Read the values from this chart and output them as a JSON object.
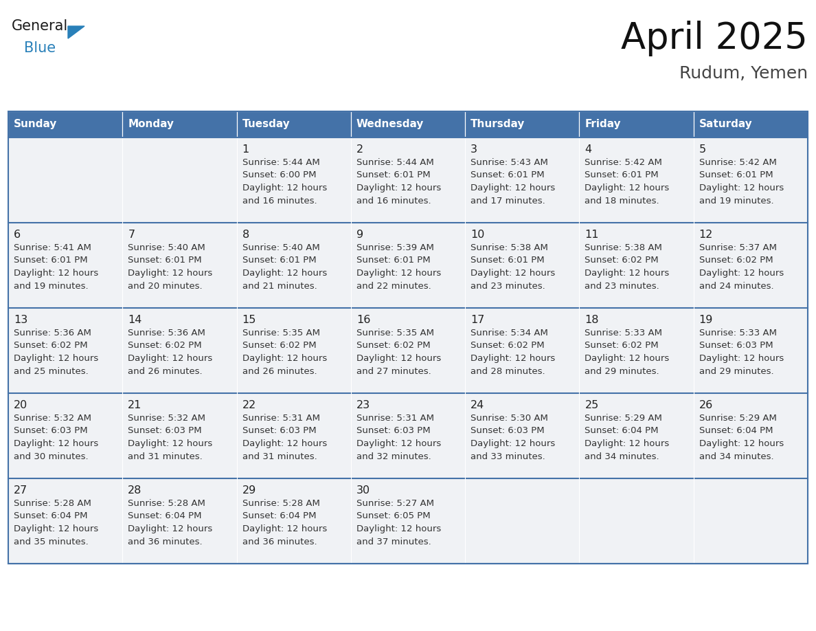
{
  "title": "April 2025",
  "subtitle": "Rudum, Yemen",
  "header_bg": "#4472a8",
  "header_text_color": "#ffffff",
  "day_names": [
    "Sunday",
    "Monday",
    "Tuesday",
    "Wednesday",
    "Thursday",
    "Friday",
    "Saturday"
  ],
  "cell_bg": "#f0f2f5",
  "cell_border_color": "#4472a8",
  "text_color": "#333333",
  "day_num_color": "#222222",
  "logo_general_color": "#1a1a1a",
  "logo_blue_color": "#2980b9",
  "calendar": [
    [
      null,
      null,
      {
        "day": 1,
        "sunrise": "5:44 AM",
        "sunset": "6:00 PM",
        "daylight": "and 16 minutes."
      },
      {
        "day": 2,
        "sunrise": "5:44 AM",
        "sunset": "6:01 PM",
        "daylight": "and 16 minutes."
      },
      {
        "day": 3,
        "sunrise": "5:43 AM",
        "sunset": "6:01 PM",
        "daylight": "and 17 minutes."
      },
      {
        "day": 4,
        "sunrise": "5:42 AM",
        "sunset": "6:01 PM",
        "daylight": "and 18 minutes."
      },
      {
        "day": 5,
        "sunrise": "5:42 AM",
        "sunset": "6:01 PM",
        "daylight": "and 19 minutes."
      }
    ],
    [
      {
        "day": 6,
        "sunrise": "5:41 AM",
        "sunset": "6:01 PM",
        "daylight": "and 19 minutes."
      },
      {
        "day": 7,
        "sunrise": "5:40 AM",
        "sunset": "6:01 PM",
        "daylight": "and 20 minutes."
      },
      {
        "day": 8,
        "sunrise": "5:40 AM",
        "sunset": "6:01 PM",
        "daylight": "and 21 minutes."
      },
      {
        "day": 9,
        "sunrise": "5:39 AM",
        "sunset": "6:01 PM",
        "daylight": "and 22 minutes."
      },
      {
        "day": 10,
        "sunrise": "5:38 AM",
        "sunset": "6:01 PM",
        "daylight": "and 23 minutes."
      },
      {
        "day": 11,
        "sunrise": "5:38 AM",
        "sunset": "6:02 PM",
        "daylight": "and 23 minutes."
      },
      {
        "day": 12,
        "sunrise": "5:37 AM",
        "sunset": "6:02 PM",
        "daylight": "and 24 minutes."
      }
    ],
    [
      {
        "day": 13,
        "sunrise": "5:36 AM",
        "sunset": "6:02 PM",
        "daylight": "and 25 minutes."
      },
      {
        "day": 14,
        "sunrise": "5:36 AM",
        "sunset": "6:02 PM",
        "daylight": "and 26 minutes."
      },
      {
        "day": 15,
        "sunrise": "5:35 AM",
        "sunset": "6:02 PM",
        "daylight": "and 26 minutes."
      },
      {
        "day": 16,
        "sunrise": "5:35 AM",
        "sunset": "6:02 PM",
        "daylight": "and 27 minutes."
      },
      {
        "day": 17,
        "sunrise": "5:34 AM",
        "sunset": "6:02 PM",
        "daylight": "and 28 minutes."
      },
      {
        "day": 18,
        "sunrise": "5:33 AM",
        "sunset": "6:02 PM",
        "daylight": "and 29 minutes."
      },
      {
        "day": 19,
        "sunrise": "5:33 AM",
        "sunset": "6:03 PM",
        "daylight": "and 29 minutes."
      }
    ],
    [
      {
        "day": 20,
        "sunrise": "5:32 AM",
        "sunset": "6:03 PM",
        "daylight": "and 30 minutes."
      },
      {
        "day": 21,
        "sunrise": "5:32 AM",
        "sunset": "6:03 PM",
        "daylight": "and 31 minutes."
      },
      {
        "day": 22,
        "sunrise": "5:31 AM",
        "sunset": "6:03 PM",
        "daylight": "and 31 minutes."
      },
      {
        "day": 23,
        "sunrise": "5:31 AM",
        "sunset": "6:03 PM",
        "daylight": "and 32 minutes."
      },
      {
        "day": 24,
        "sunrise": "5:30 AM",
        "sunset": "6:03 PM",
        "daylight": "and 33 minutes."
      },
      {
        "day": 25,
        "sunrise": "5:29 AM",
        "sunset": "6:04 PM",
        "daylight": "and 34 minutes."
      },
      {
        "day": 26,
        "sunrise": "5:29 AM",
        "sunset": "6:04 PM",
        "daylight": "and 34 minutes."
      }
    ],
    [
      {
        "day": 27,
        "sunrise": "5:28 AM",
        "sunset": "6:04 PM",
        "daylight": "and 35 minutes."
      },
      {
        "day": 28,
        "sunrise": "5:28 AM",
        "sunset": "6:04 PM",
        "daylight": "and 36 minutes."
      },
      {
        "day": 29,
        "sunrise": "5:28 AM",
        "sunset": "6:04 PM",
        "daylight": "and 36 minutes."
      },
      {
        "day": 30,
        "sunrise": "5:27 AM",
        "sunset": "6:05 PM",
        "daylight": "and 37 minutes."
      },
      null,
      null,
      null
    ]
  ],
  "fig_width": 11.88,
  "fig_height": 9.18,
  "dpi": 100
}
